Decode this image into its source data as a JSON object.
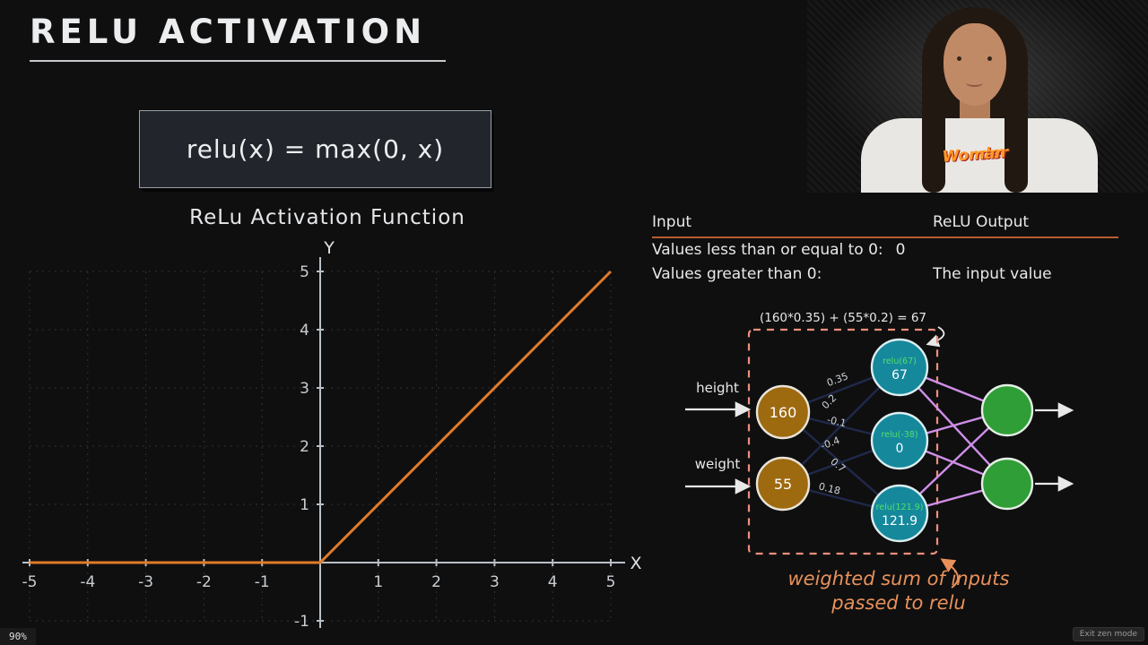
{
  "colors": {
    "accent-orange": "#e07b2a",
    "table-rule": "#b85c2e",
    "caption-orange": "#e8915a",
    "box-dash": "#ef8f7c",
    "input-node": "#9e6a10",
    "hidden-node": "#15889c",
    "output-node": "#2f9e37",
    "edge-dark": "#20294a",
    "edge-violet": "#cf8fe8",
    "relu-green": "#52e06a",
    "logo-orange": "#ff9a2a"
  },
  "header": {
    "title": "RELU ACTIVATION"
  },
  "formula": {
    "text": "relu(x) = max(0, x)"
  },
  "chart_data": {
    "type": "line",
    "title": "ReLu Activation Function",
    "xlabel": "X",
    "ylabel": "Y",
    "xlim": [
      -5,
      5
    ],
    "ylim": [
      -1,
      5
    ],
    "x_ticks": [
      -5,
      -4,
      -3,
      -2,
      -1,
      1,
      2,
      3,
      4,
      5
    ],
    "y_ticks": [
      -1,
      1,
      2,
      3,
      4,
      5
    ],
    "grid": true,
    "legend": "none",
    "line_color": "#e07b2a",
    "axis_color": "#b9c0c6",
    "grid_color": "#2d3238",
    "series": [
      {
        "name": "relu(x) = max(0, x)",
        "points": [
          [
            -5,
            0
          ],
          [
            0,
            0
          ],
          [
            5,
            5
          ]
        ]
      }
    ]
  },
  "io_table": {
    "headers": [
      "Input",
      "ReLU Output"
    ],
    "rows": [
      {
        "input": "Values less than or equal to 0:",
        "output": "0"
      },
      {
        "input": "Values greater than 0:",
        "output": "The input value"
      }
    ]
  },
  "network": {
    "annotation": "(160*0.35) + (55*0.2) = 67",
    "input_labels": [
      "height",
      "weight"
    ],
    "input_nodes": [
      "160",
      "55"
    ],
    "hidden_nodes": [
      {
        "formula": "relu(67)",
        "value": "67"
      },
      {
        "formula": "relu(-38)",
        "value": "0"
      },
      {
        "formula": "relu(121.9)",
        "value": "121.9"
      }
    ],
    "weights": {
      "w1": "0.35",
      "w2": "0.2",
      "w3": "-0.1",
      "w4": "-0.4",
      "w5": "0.7",
      "w6": "0.18"
    },
    "caption": [
      "weighted sum of inputs",
      "passed to relu"
    ]
  },
  "webcam": {
    "shirt_logo": [
      "Wonder",
      "Woman"
    ]
  },
  "statusbar": {
    "zoom": "90%",
    "exit_zen": "Exit zen mode"
  }
}
